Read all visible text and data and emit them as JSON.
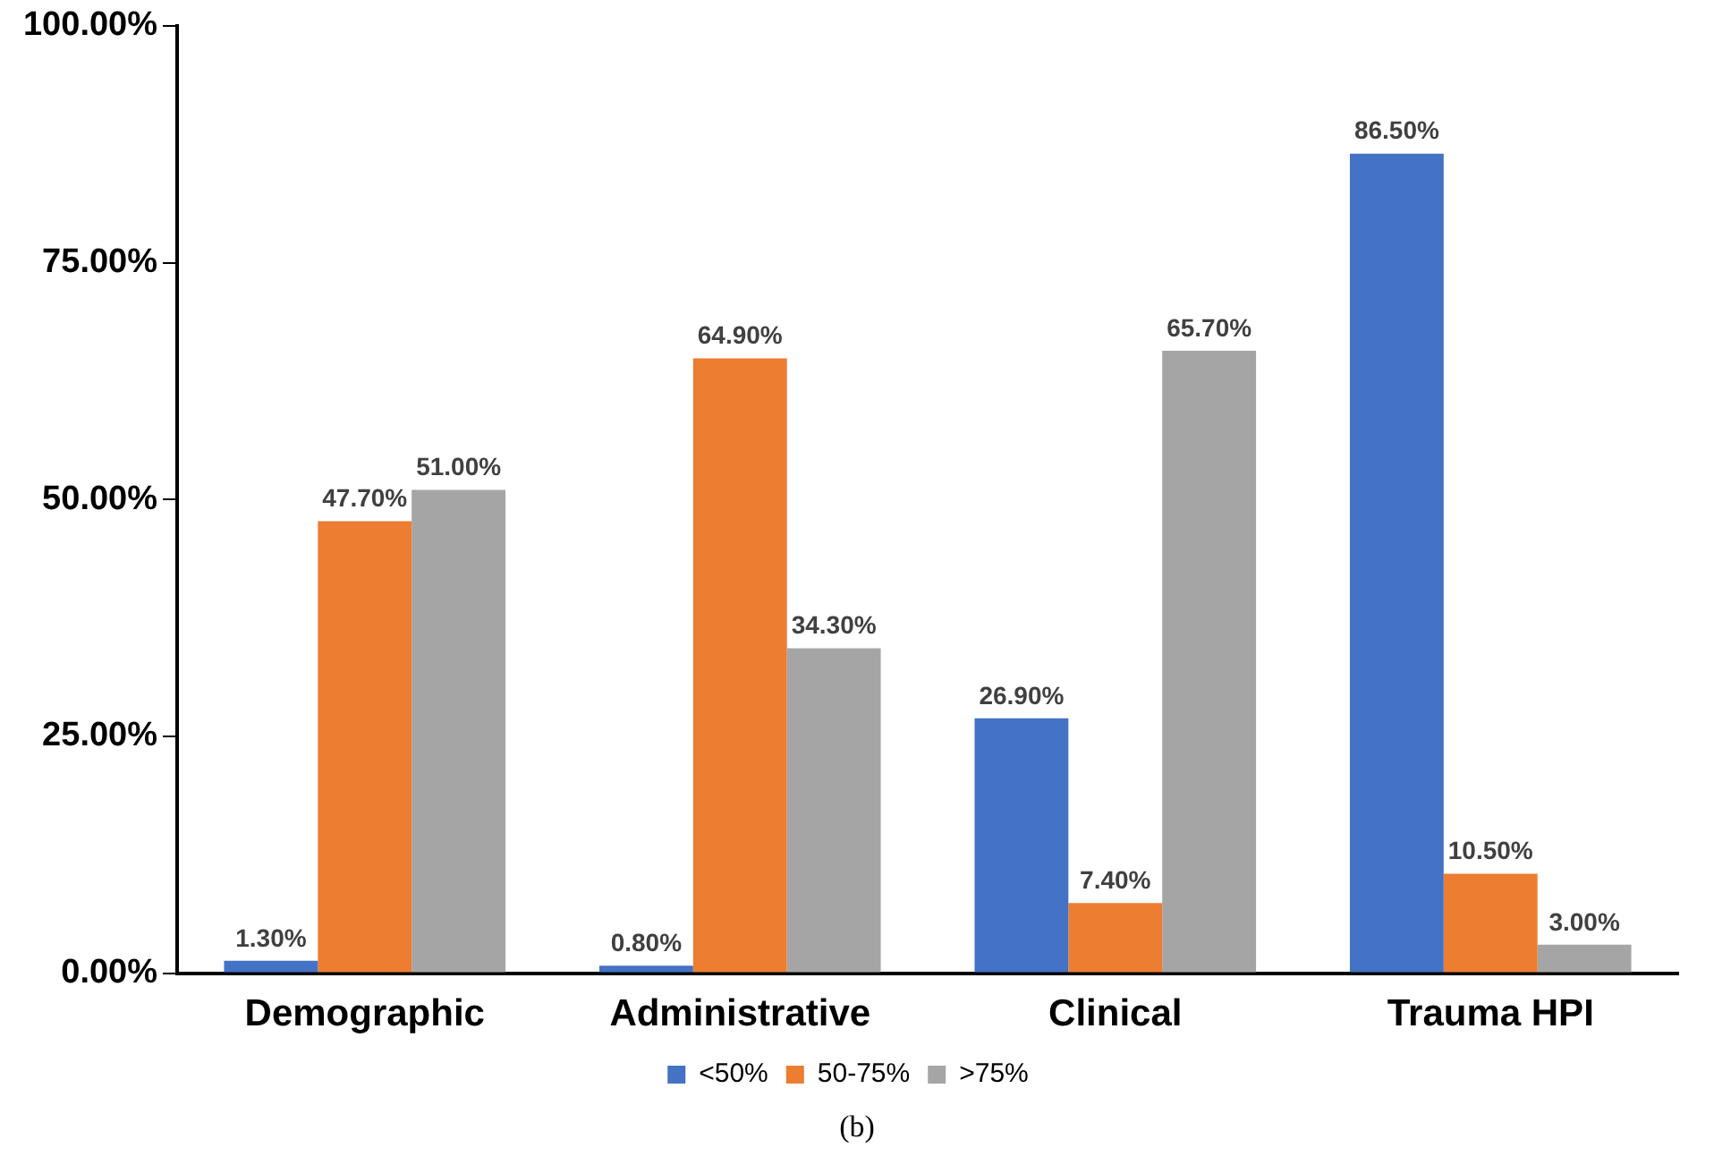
{
  "chart_data": {
    "type": "bar",
    "categories": [
      "Demographic",
      "Administrative",
      "Clinical",
      "Trauma HPI"
    ],
    "series": [
      {
        "name": "<50%",
        "color": "#4472c4",
        "values": [
          1.3,
          0.8,
          26.9,
          86.5
        ],
        "value_labels": [
          "1.30%",
          "0.80%",
          "26.90%",
          "86.50%"
        ]
      },
      {
        "name": "50-75%",
        "color": "#ed7d31",
        "values": [
          47.7,
          64.9,
          7.4,
          10.5
        ],
        "value_labels": [
          "47.70%",
          "64.90%",
          "7.40%",
          "10.50%"
        ]
      },
      {
        "name": ">75%",
        "color": "#a5a5a5",
        "values": [
          51.0,
          34.3,
          65.7,
          3.0
        ],
        "value_labels": [
          "51.00%",
          "34.30%",
          "65.70%",
          "3.00%"
        ]
      }
    ],
    "ylim": [
      0,
      100
    ],
    "yticks": [
      {
        "value": 0,
        "label": "0.00%"
      },
      {
        "value": 25,
        "label": "25.00%"
      },
      {
        "value": 50,
        "label": "50.00%"
      },
      {
        "value": 75,
        "label": "75.00%"
      },
      {
        "value": 100,
        "label": "100.00%"
      }
    ],
    "grid": false,
    "legend": "bottom",
    "annotations": [
      "(b)"
    ]
  }
}
